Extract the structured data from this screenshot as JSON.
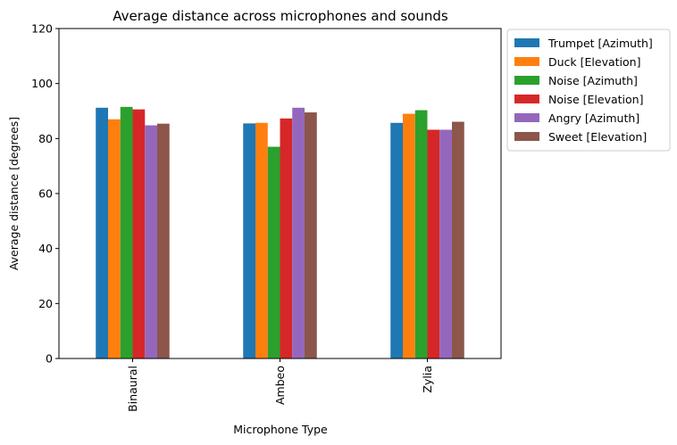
{
  "chart_data": {
    "type": "bar",
    "title": "Average distance across microphones and sounds",
    "xlabel": "Microphone Type",
    "ylabel": "Average distance [degrees]",
    "categories": [
      "Binaural",
      "Ambeo",
      "Zylia"
    ],
    "ylim": [
      0,
      120
    ],
    "yticks": [
      0,
      20,
      40,
      60,
      80,
      100,
      120
    ],
    "grid": false,
    "legend_position": "outside-top-right",
    "series": [
      {
        "name": "Trumpet [Azimuth]",
        "color": "#1f77b4",
        "values": [
          91.2,
          85.5,
          85.7
        ]
      },
      {
        "name": "Duck [Elevation]",
        "color": "#ff7f0e",
        "values": [
          87.0,
          85.7,
          89.0
        ]
      },
      {
        "name": "Noise [Azimuth]",
        "color": "#2ca02c",
        "values": [
          91.5,
          77.0,
          90.3
        ]
      },
      {
        "name": "Noise [Elevation]",
        "color": "#d62728",
        "values": [
          90.6,
          87.3,
          83.2
        ]
      },
      {
        "name": "Angry [Azimuth]",
        "color": "#9467bd",
        "values": [
          84.8,
          91.2,
          83.2
        ]
      },
      {
        "name": "Sweet [Elevation]",
        "color": "#8c564b",
        "values": [
          85.4,
          89.5,
          86.1
        ]
      }
    ]
  }
}
